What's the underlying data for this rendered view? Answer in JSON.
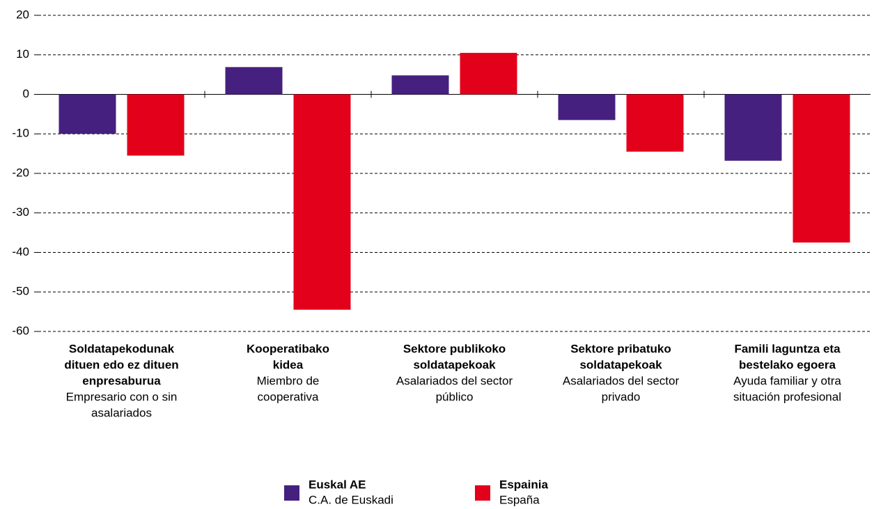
{
  "chart_data": {
    "type": "bar",
    "categories": [
      {
        "eu": [
          "Soldatapekodunak",
          "dituen edo ez dituen",
          "enpresaburua"
        ],
        "es": [
          "Empresario con o sin",
          "asalariados"
        ]
      },
      {
        "eu": [
          "Kooperatibako",
          "kidea"
        ],
        "es": [
          "Miembro de",
          "cooperativa"
        ]
      },
      {
        "eu": [
          "Sektore publikoko",
          "soldatapekoak"
        ],
        "es": [
          "Asalariados del sector",
          "público"
        ]
      },
      {
        "eu": [
          "Sektore pribatuko",
          "soldatapekoak"
        ],
        "es": [
          "Asalariados del sector",
          "privado"
        ]
      },
      {
        "eu": [
          "Famili laguntza eta",
          "bestelako egoera"
        ],
        "es": [
          "Ayuda familiar y otra",
          "situación profesional"
        ]
      }
    ],
    "series": [
      {
        "name": {
          "eu": "Euskal AE",
          "es": "C.A. de Euskadi"
        },
        "color": "#46207f",
        "values": [
          -10,
          6.9,
          4.8,
          -6.5,
          -16.8
        ]
      },
      {
        "name": {
          "eu": "Espainia",
          "es": "España"
        },
        "color": "#e2001a",
        "values": [
          -15.5,
          -54.5,
          10.5,
          -14.5,
          -37.5
        ]
      }
    ],
    "ylim": [
      -60,
      20
    ],
    "yticks": [
      20,
      10,
      0,
      -10,
      -20,
      -30,
      -40,
      -50,
      -60
    ],
    "grid": true
  }
}
